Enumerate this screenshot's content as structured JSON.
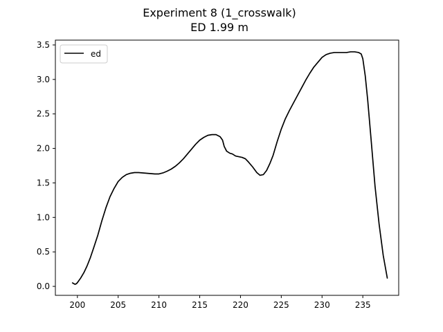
{
  "chart_data": {
    "type": "line",
    "title": "Experiment 8 (1_crosswalk)",
    "subtitle": "ED 1.99 m",
    "xlabel": "",
    "ylabel": "",
    "xlim": [
      197.3,
      239.4
    ],
    "ylim": [
      -0.13,
      3.57
    ],
    "xticks": [
      200,
      205,
      210,
      215,
      220,
      225,
      230,
      235
    ],
    "yticks": [
      0.0,
      0.5,
      1.0,
      1.5,
      2.0,
      2.5,
      3.0,
      3.5
    ],
    "xtick_labels": [
      "200",
      "205",
      "210",
      "215",
      "220",
      "225",
      "230",
      "235"
    ],
    "ytick_labels": [
      "0.0",
      "0.5",
      "1.0",
      "1.5",
      "2.0",
      "2.5",
      "3.0",
      "3.5"
    ],
    "grid": false,
    "legend_position": "upper-left",
    "series": [
      {
        "name": "ed",
        "color": "#000000",
        "points": [
          [
            199.4,
            0.05
          ],
          [
            199.7,
            0.03
          ],
          [
            199.9,
            0.04
          ],
          [
            200.1,
            0.07
          ],
          [
            200.4,
            0.12
          ],
          [
            200.8,
            0.2
          ],
          [
            201.2,
            0.3
          ],
          [
            201.6,
            0.42
          ],
          [
            202.0,
            0.56
          ],
          [
            202.5,
            0.74
          ],
          [
            203.0,
            0.95
          ],
          [
            203.5,
            1.14
          ],
          [
            204.0,
            1.3
          ],
          [
            204.5,
            1.42
          ],
          [
            205.0,
            1.52
          ],
          [
            205.5,
            1.58
          ],
          [
            206.0,
            1.62
          ],
          [
            206.5,
            1.64
          ],
          [
            207.0,
            1.65
          ],
          [
            207.5,
            1.65
          ],
          [
            208.0,
            1.645
          ],
          [
            208.5,
            1.64
          ],
          [
            209.0,
            1.635
          ],
          [
            209.5,
            1.63
          ],
          [
            210.0,
            1.63
          ],
          [
            210.5,
            1.645
          ],
          [
            211.0,
            1.67
          ],
          [
            211.5,
            1.7
          ],
          [
            212.0,
            1.74
          ],
          [
            212.5,
            1.79
          ],
          [
            213.0,
            1.85
          ],
          [
            213.5,
            1.92
          ],
          [
            214.0,
            1.99
          ],
          [
            214.5,
            2.06
          ],
          [
            215.0,
            2.12
          ],
          [
            215.5,
            2.16
          ],
          [
            216.0,
            2.19
          ],
          [
            216.5,
            2.2
          ],
          [
            217.0,
            2.2
          ],
          [
            217.5,
            2.17
          ],
          [
            217.8,
            2.12
          ],
          [
            218.0,
            2.03
          ],
          [
            218.3,
            1.96
          ],
          [
            218.7,
            1.93
          ],
          [
            219.0,
            1.92
          ],
          [
            219.4,
            1.89
          ],
          [
            219.8,
            1.88
          ],
          [
            220.2,
            1.87
          ],
          [
            220.6,
            1.85
          ],
          [
            221.0,
            1.8
          ],
          [
            221.5,
            1.73
          ],
          [
            222.0,
            1.65
          ],
          [
            222.4,
            1.61
          ],
          [
            222.8,
            1.62
          ],
          [
            223.2,
            1.68
          ],
          [
            223.6,
            1.78
          ],
          [
            224.0,
            1.9
          ],
          [
            224.5,
            2.1
          ],
          [
            225.0,
            2.28
          ],
          [
            225.5,
            2.43
          ],
          [
            226.0,
            2.55
          ],
          [
            226.5,
            2.66
          ],
          [
            227.0,
            2.77
          ],
          [
            227.5,
            2.88
          ],
          [
            228.0,
            2.99
          ],
          [
            228.5,
            3.09
          ],
          [
            229.0,
            3.18
          ],
          [
            229.5,
            3.25
          ],
          [
            230.0,
            3.32
          ],
          [
            230.5,
            3.36
          ],
          [
            231.0,
            3.38
          ],
          [
            231.5,
            3.39
          ],
          [
            232.0,
            3.39
          ],
          [
            232.5,
            3.39
          ],
          [
            233.0,
            3.39
          ],
          [
            233.5,
            3.4
          ],
          [
            234.0,
            3.4
          ],
          [
            234.5,
            3.39
          ],
          [
            234.8,
            3.37
          ],
          [
            235.0,
            3.3
          ],
          [
            235.3,
            3.05
          ],
          [
            235.6,
            2.7
          ],
          [
            236.0,
            2.15
          ],
          [
            236.5,
            1.45
          ],
          [
            237.0,
            0.9
          ],
          [
            237.5,
            0.45
          ],
          [
            238.0,
            0.12
          ]
        ]
      }
    ]
  }
}
